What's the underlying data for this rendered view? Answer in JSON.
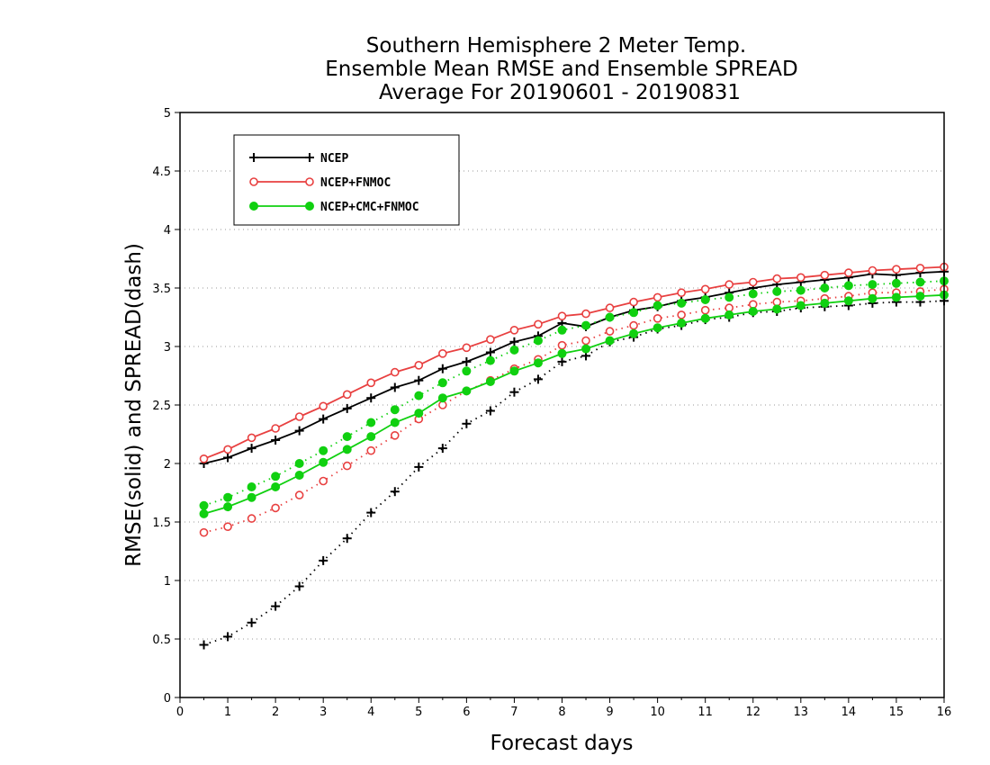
{
  "chart_data": {
    "type": "line",
    "title_lines": [
      "Southern Hemisphere 2 Meter Temp.",
      "Ensemble Mean RMSE and Ensemble SPREAD",
      "Average For 20190601 - 20190831"
    ],
    "xlabel": "Forecast days",
    "ylabel": "RMSE(solid) and SPREAD(dash)",
    "xlim": [
      0,
      16
    ],
    "ylim": [
      0,
      5
    ],
    "x_ticks": [
      0,
      1,
      2,
      3,
      4,
      5,
      6,
      7,
      8,
      9,
      10,
      11,
      12,
      13,
      14,
      15,
      16
    ],
    "y_ticks": [
      0,
      0.5,
      1,
      1.5,
      2,
      2.5,
      3,
      3.5,
      4,
      4.5,
      5
    ],
    "grid": "horizontal dotted",
    "legend_position": "top-left",
    "x": [
      0.5,
      1,
      1.5,
      2,
      2.5,
      3,
      3.5,
      4,
      4.5,
      5,
      5.5,
      6,
      6.5,
      7,
      7.5,
      8,
      8.5,
      9,
      9.5,
      10,
      10.5,
      11,
      11.5,
      12,
      12.5,
      13,
      13.5,
      14,
      14.5,
      15,
      15.5,
      16
    ],
    "series": [
      {
        "name": "NCEP",
        "color": "#000000",
        "marker": "plus",
        "rmse": [
          2.0,
          2.05,
          2.13,
          2.2,
          2.28,
          2.38,
          2.47,
          2.56,
          2.65,
          2.71,
          2.81,
          2.87,
          2.95,
          3.04,
          3.09,
          3.2,
          3.17,
          3.25,
          3.31,
          3.34,
          3.39,
          3.42,
          3.46,
          3.5,
          3.53,
          3.55,
          3.57,
          3.59,
          3.62,
          3.61,
          3.63,
          3.64
        ],
        "spread": [
          0.45,
          0.52,
          0.64,
          0.78,
          0.95,
          1.17,
          1.36,
          1.58,
          1.76,
          1.97,
          2.13,
          2.34,
          2.45,
          2.61,
          2.72,
          2.87,
          2.92,
          3.04,
          3.08,
          3.15,
          3.18,
          3.23,
          3.25,
          3.29,
          3.3,
          3.33,
          3.34,
          3.35,
          3.37,
          3.38,
          3.38,
          3.39
        ]
      },
      {
        "name": "NCEP+FNMOC",
        "color": "#e84040",
        "marker": "open-circle",
        "rmse": [
          2.04,
          2.12,
          2.22,
          2.3,
          2.4,
          2.49,
          2.59,
          2.69,
          2.78,
          2.84,
          2.94,
          2.99,
          3.06,
          3.14,
          3.19,
          3.26,
          3.28,
          3.33,
          3.38,
          3.42,
          3.46,
          3.49,
          3.53,
          3.55,
          3.58,
          3.59,
          3.61,
          3.63,
          3.65,
          3.66,
          3.67,
          3.68
        ],
        "spread": [
          1.41,
          1.46,
          1.53,
          1.62,
          1.73,
          1.85,
          1.98,
          2.11,
          2.24,
          2.38,
          2.5,
          2.62,
          2.71,
          2.81,
          2.89,
          3.01,
          3.05,
          3.13,
          3.18,
          3.24,
          3.27,
          3.31,
          3.33,
          3.36,
          3.38,
          3.39,
          3.41,
          3.43,
          3.46,
          3.46,
          3.47,
          3.49
        ]
      },
      {
        "name": "NCEP+CMC+FNMOC",
        "color": "#10d010",
        "marker": "filled-circle",
        "rmse": [
          1.57,
          1.63,
          1.71,
          1.8,
          1.9,
          2.01,
          2.12,
          2.23,
          2.35,
          2.43,
          2.56,
          2.62,
          2.7,
          2.79,
          2.86,
          2.94,
          2.98,
          3.05,
          3.11,
          3.16,
          3.2,
          3.24,
          3.27,
          3.3,
          3.32,
          3.35,
          3.37,
          3.39,
          3.41,
          3.42,
          3.43,
          3.44
        ],
        "spread": [
          1.64,
          1.71,
          1.8,
          1.89,
          2.0,
          2.11,
          2.23,
          2.35,
          2.46,
          2.58,
          2.69,
          2.79,
          2.88,
          2.97,
          3.05,
          3.14,
          3.18,
          3.25,
          3.29,
          3.35,
          3.37,
          3.4,
          3.42,
          3.45,
          3.47,
          3.48,
          3.5,
          3.52,
          3.53,
          3.54,
          3.55,
          3.56
        ]
      }
    ]
  }
}
